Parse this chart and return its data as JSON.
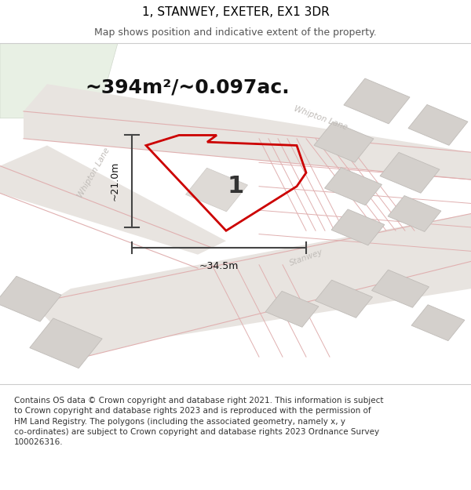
{
  "title": "1, STANWEY, EXETER, EX1 3DR",
  "subtitle": "Map shows position and indicative extent of the property.",
  "area_label": "~394m²/~0.097ac.",
  "plot_number": "1",
  "width_label": "~34.5m",
  "height_label": "~21.0m",
  "footer_text": "Contains OS data © Crown copyright and database right 2021. This information is subject to Crown copyright and database rights 2023 and is reproduced with the permission of HM Land Registry. The polygons (including the associated geometry, namely x, y co-ordinates) are subject to Crown copyright and database rights 2023 Ordnance Survey 100026316.",
  "map_bg": "#f0eeeb",
  "green_color": "#e8f0e4",
  "road_fill": "#e8e4e0",
  "road_line": "#e0b0b0",
  "building_fill": "#d8d4d0",
  "building_edge": "#c4c0bc",
  "plot_outline": "#cc0000",
  "dim_color": "#444444",
  "title_fontsize": 11,
  "subtitle_fontsize": 9,
  "area_fontsize": 18,
  "footer_fontsize": 7.5,
  "road_label_color": "#c0bcb8",
  "plot_label_color": "#333333",
  "title_color": "#000000",
  "footer_color": "#333333"
}
